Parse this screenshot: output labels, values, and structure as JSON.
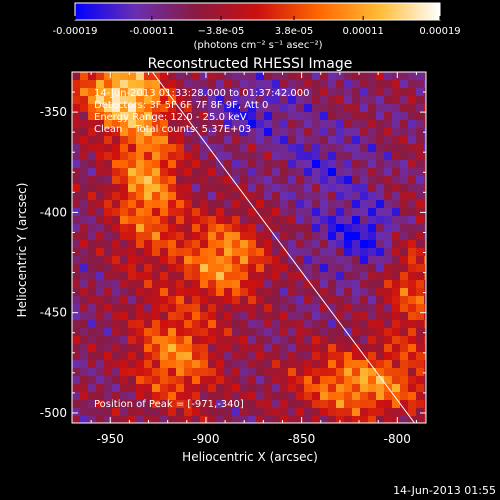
{
  "chart_data": {
    "type": "heatmap",
    "title": "Reconstructed RHESSI Image",
    "xlabel": "Heliocentric X (arcsec)",
    "ylabel": "Heliocentric Y (arcsec)",
    "xlim": [
      -970,
      -785
    ],
    "ylim": [
      -505,
      -330
    ],
    "x_ticks": [
      -950,
      -900,
      -850,
      -800
    ],
    "y_ticks": [
      -350,
      -400,
      -450,
      -500
    ],
    "colorbar": {
      "range": [
        -0.00019,
        0.00019
      ],
      "tick_values": [
        -0.00019,
        -0.00011,
        -3.8e-05,
        3.8e-05,
        0.00011,
        0.00019
      ],
      "tick_labels": [
        "-0.00019",
        "-0.00011",
        "−3.8e-05",
        "3.8e-05",
        "0.00011",
        "0.00019"
      ],
      "units": "(photons cm⁻² s⁻¹ asec⁻²)",
      "colors": [
        "#0000ff",
        "#6a2fb0",
        "#8a1a40",
        "#cc1010",
        "#ff6600",
        "#ffbb33",
        "#ffffff"
      ]
    },
    "annotations": [
      "14-Jun-2013 01:33:28.000 to 01:37:42.000",
      "Detectors: 3F 5F 6F 7F 8F 9F, Att 0",
      "Energy Range: 12.0 - 25.0 keV",
      "Clean    Total counts: 5.37E+03"
    ],
    "peak_label": "Position of Peak = [-971,-340]",
    "limb_line": [
      [
        -928,
        -330
      ],
      [
        -791,
        -505
      ]
    ],
    "grid": false
  },
  "footer": {
    "timestamp": "14-Jun-2013 01:55"
  }
}
